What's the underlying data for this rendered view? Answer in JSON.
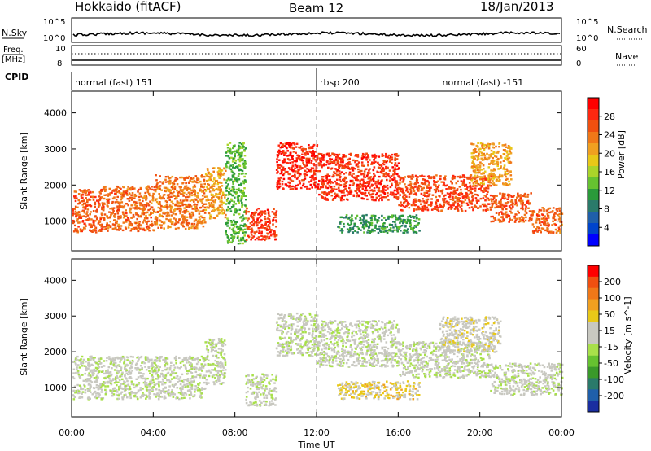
{
  "header": {
    "station": "Hokkaido (fitACF)",
    "beam": "Beam 12",
    "date": "18/Jan/2013"
  },
  "top_panels": {
    "nsky_label": "N.Sky",
    "nsky_ticks": [
      "10^5",
      "10^0"
    ],
    "nsearch_label": "N.Search",
    "nsearch_ticks": [
      "10^5",
      "10^0"
    ],
    "freq_label": "Freq.",
    "freq_unit": "[MHz]",
    "freq_ticks": [
      "10",
      "8"
    ],
    "nave_label": "Nave",
    "nave_ticks": [
      "60",
      "0"
    ],
    "cpid_label": "CPID",
    "cpid_segments": [
      {
        "label": "normal (fast) 151",
        "start_hour": 0,
        "end_hour": 12
      },
      {
        "label": "rbsp 200",
        "start_hour": 12,
        "end_hour": 18
      },
      {
        "label": "normal (fast) -151",
        "start_hour": 18,
        "end_hour": 24
      }
    ]
  },
  "chart_data": [
    {
      "type": "heatmap",
      "title": "",
      "ylabel": "Slant Range [km]",
      "xlim_hours": [
        0,
        24
      ],
      "ylim": [
        180,
        4600
      ],
      "yticks": [
        1000,
        2000,
        3000,
        4000
      ],
      "colorbar": {
        "label": "Power [dB]",
        "range": [
          0,
          30
        ],
        "ticks": [
          "4",
          "8",
          "12",
          "16",
          "20",
          "24",
          "28"
        ],
        "colors": [
          "#0000ff",
          "#0044cc",
          "#1f5faa",
          "#2a7a6a",
          "#2a9a3a",
          "#66c230",
          "#aad42a",
          "#e8c818",
          "#f0a020",
          "#f07818",
          "#f05010",
          "#ff2810",
          "#ff0000"
        ]
      },
      "series": [
        {
          "start": 0.0,
          "end": 1.5,
          "lo": 700,
          "hi": 1900,
          "value": 24
        },
        {
          "start": 1.5,
          "end": 4.0,
          "lo": 750,
          "hi": 2000,
          "value": 23
        },
        {
          "start": 4.0,
          "end": 6.5,
          "lo": 800,
          "hi": 2300,
          "value": 22
        },
        {
          "start": 6.5,
          "end": 7.5,
          "lo": 1100,
          "hi": 2500,
          "value": 20
        },
        {
          "start": 7.5,
          "end": 8.5,
          "lo": 400,
          "hi": 3200,
          "value": 12
        },
        {
          "start": 8.5,
          "end": 10.0,
          "lo": 500,
          "hi": 1400,
          "value": 26
        },
        {
          "start": 10.0,
          "end": 12.0,
          "lo": 1900,
          "hi": 3200,
          "value": 27
        },
        {
          "start": 12.0,
          "end": 16.0,
          "lo": 1600,
          "hi": 2900,
          "value": 26
        },
        {
          "start": 13.0,
          "end": 17.0,
          "lo": 700,
          "hi": 1200,
          "value": 10
        },
        {
          "start": 16.0,
          "end": 20.5,
          "lo": 1300,
          "hi": 2300,
          "value": 25
        },
        {
          "start": 20.5,
          "end": 22.5,
          "lo": 1000,
          "hi": 1800,
          "value": 24
        },
        {
          "start": 22.5,
          "end": 24.0,
          "lo": 700,
          "hi": 1400,
          "value": 23
        },
        {
          "start": 19.5,
          "end": 21.5,
          "lo": 2000,
          "hi": 3200,
          "value": 20
        }
      ]
    },
    {
      "type": "heatmap",
      "title": "",
      "ylabel": "Slant Range [km]",
      "xlabel": "Time UT",
      "xlim_hours": [
        0,
        24
      ],
      "ylim": [
        180,
        4600
      ],
      "yticks": [
        1000,
        2000,
        3000,
        4000
      ],
      "xticks": [
        "00:00",
        "04:00",
        "08:00",
        "12:00",
        "16:00",
        "20:00",
        "00:00"
      ],
      "colorbar": {
        "label": "Velocity [m s^-1]",
        "range": [
          -250,
          250
        ],
        "ticks": [
          "200",
          "100",
          "50",
          "15",
          "-15",
          "-50",
          "-100",
          "-200"
        ],
        "colors": [
          "#1a2ea0",
          "#1f5faa",
          "#2a7a6a",
          "#3a9a2a",
          "#66c230",
          "#a8e04a",
          "#c8c8c0",
          "#c8c8c0",
          "#e8c818",
          "#f0a020",
          "#f07818",
          "#f05010",
          "#ff0000"
        ]
      },
      "series": [
        {
          "start": 0.0,
          "end": 6.5,
          "lo": 700,
          "hi": 1900,
          "value": 0
        },
        {
          "start": 6.5,
          "end": 7.5,
          "lo": 1100,
          "hi": 2400,
          "value": 0
        },
        {
          "start": 8.5,
          "end": 10.0,
          "lo": 500,
          "hi": 1400,
          "value": 0
        },
        {
          "start": 10.0,
          "end": 12.0,
          "lo": 1900,
          "hi": 3100,
          "value": 0
        },
        {
          "start": 12.0,
          "end": 16.0,
          "lo": 1600,
          "hi": 2900,
          "value": 0
        },
        {
          "start": 13.0,
          "end": 17.0,
          "lo": 700,
          "hi": 1200,
          "value": 60
        },
        {
          "start": 16.0,
          "end": 20.5,
          "lo": 1300,
          "hi": 2300,
          "value": 0
        },
        {
          "start": 20.5,
          "end": 24.0,
          "lo": 800,
          "hi": 1700,
          "value": 0
        },
        {
          "start": 18.0,
          "end": 21.0,
          "lo": 2000,
          "hi": 3000,
          "value": 30
        }
      ]
    }
  ]
}
